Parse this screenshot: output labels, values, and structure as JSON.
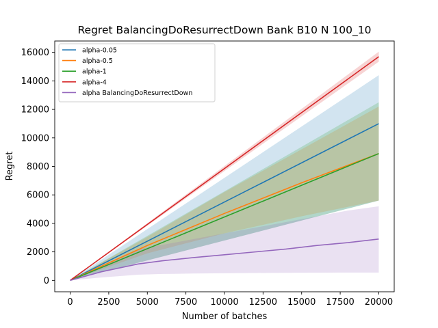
{
  "chart_data": {
    "type": "line",
    "title": "Regret BalancingDoResurrectDown Bank B10 N 100_10",
    "xlabel": "Number of batches",
    "ylabel": "Regret",
    "xlim": [
      -1000,
      21000
    ],
    "ylim": [
      -800,
      16800
    ],
    "xticks": [
      0,
      2500,
      5000,
      7500,
      10000,
      12500,
      15000,
      17500,
      20000
    ],
    "yticks": [
      0,
      2000,
      4000,
      6000,
      8000,
      10000,
      12000,
      14000,
      16000
    ],
    "legend_position": "upper-left",
    "grid": false,
    "series": [
      {
        "name": "alpha-0.05",
        "color": "#1f77b4",
        "x": [
          0,
          20000
        ],
        "y": [
          0,
          11000
        ],
        "y_upper": [
          0,
          14400
        ],
        "y_lower": [
          0,
          5600
        ]
      },
      {
        "name": "alpha-0.5",
        "color": "#ff7f0e",
        "x": [
          0,
          5000,
          10000,
          15000,
          20000
        ],
        "y": [
          0,
          2450,
          4700,
          6850,
          8900
        ],
        "y_upper": [
          0,
          3050,
          6200,
          9200,
          12200
        ],
        "y_lower": [
          0,
          1900,
          3300,
          4500,
          5600
        ]
      },
      {
        "name": "alpha-1",
        "color": "#2ca02c",
        "x": [
          0,
          20000
        ],
        "y": [
          0,
          8900
        ],
        "y_upper": [
          0,
          12500
        ],
        "y_lower": [
          0,
          5600
        ]
      },
      {
        "name": "alpha-4",
        "color": "#d62728",
        "x": [
          0,
          20000
        ],
        "y": [
          0,
          15700
        ],
        "y_upper": [
          0,
          16050
        ],
        "y_lower": [
          0,
          15350
        ]
      },
      {
        "name": "alpha BalancingDoResurrectDown",
        "color": "#9467bd",
        "x": [
          0,
          2000,
          4400,
          6000,
          8000,
          10000,
          12000,
          14000,
          16000,
          18000,
          20000
        ],
        "y": [
          0,
          600,
          1150,
          1380,
          1600,
          1800,
          2000,
          2200,
          2450,
          2650,
          2900
        ],
        "y_upper": [
          0,
          1000,
          2200,
          2500,
          2900,
          3300,
          3700,
          4100,
          4500,
          4900,
          5200
        ],
        "y_lower": [
          0,
          200,
          400,
          450,
          480,
          500,
          520,
          530,
          540,
          550,
          550
        ]
      }
    ]
  }
}
